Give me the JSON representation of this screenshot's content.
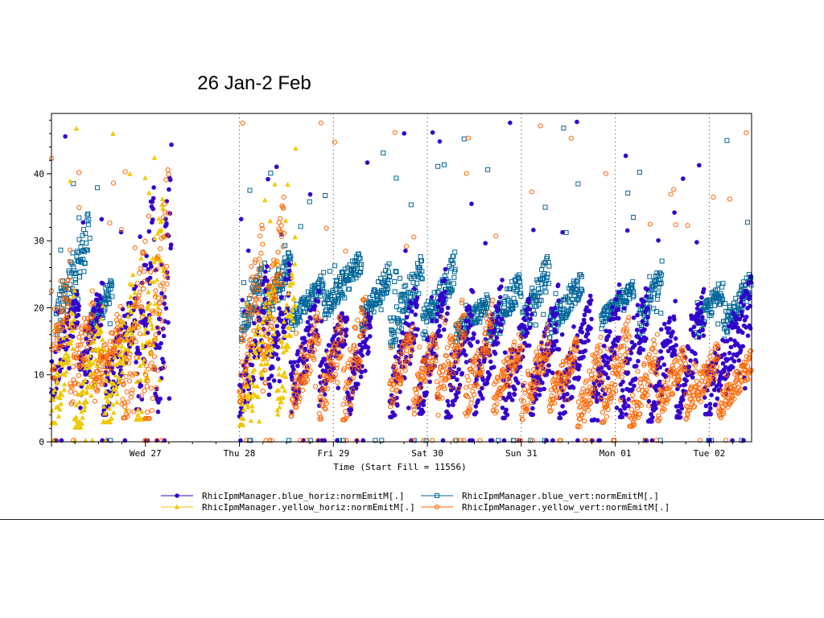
{
  "slide": {
    "title": "26 Jan-2 Feb"
  },
  "chart_data": {
    "type": "scatter",
    "title": "",
    "xlabel": "Time (Start Fill = 11556)",
    "ylabel": "",
    "x_ticks": [
      "Wed 27",
      "Thu 28",
      "Fri 29",
      "Sat 30",
      "Sun 31",
      "Mon 01",
      "Tue 02"
    ],
    "x_tick_positions_days": [
      1,
      2,
      3,
      4,
      5,
      6,
      7
    ],
    "xlim_days": [
      0,
      7.45
    ],
    "ylim": [
      0,
      49
    ],
    "y_ticks": [
      0,
      10,
      20,
      30,
      40
    ],
    "grid": "dotted vertical lines at day boundaries",
    "legend_position": "bottom",
    "gaps_days": [
      [
        1.45,
        1.98
      ]
    ],
    "series": [
      {
        "name": "RhicIpmManager.blue_horiz:normEmitM[.]",
        "marker": "filled-circle",
        "color": "#3300cc",
        "pattern": [
          {
            "t0": 0.0,
            "t1": 0.3,
            "y0": 9,
            "y1": 21
          },
          {
            "t0": 0.3,
            "t1": 0.55,
            "y0": 8,
            "y1": 22
          },
          {
            "t0": 0.55,
            "t1": 0.9,
            "y0": 6,
            "y1": 20
          },
          {
            "t0": 0.9,
            "t1": 1.1,
            "y0": 5,
            "y1": 36
          },
          {
            "t0": 1.1,
            "t1": 1.28,
            "y0": 4,
            "y1": 37
          },
          {
            "t0": 2.0,
            "t1": 2.3,
            "y0": 5,
            "y1": 22
          },
          {
            "t0": 2.3,
            "t1": 2.55,
            "y0": 9,
            "y1": 24
          },
          {
            "t0": 2.55,
            "t1": 2.85,
            "y0": 7,
            "y1": 20
          },
          {
            "t0": 2.85,
            "t1": 3.15,
            "y0": 8,
            "y1": 19
          },
          {
            "t0": 3.15,
            "t1": 3.4,
            "y0": 6,
            "y1": 18
          },
          {
            "t0": 3.6,
            "t1": 3.9,
            "y0": 5,
            "y1": 21
          },
          {
            "t0": 3.9,
            "t1": 4.2,
            "y0": 6,
            "y1": 22
          },
          {
            "t0": 4.2,
            "t1": 4.5,
            "y0": 5,
            "y1": 20
          },
          {
            "t0": 4.5,
            "t1": 4.8,
            "y0": 6,
            "y1": 21
          },
          {
            "t0": 4.8,
            "t1": 5.1,
            "y0": 5,
            "y1": 19
          },
          {
            "t0": 5.1,
            "t1": 5.4,
            "y0": 6,
            "y1": 20
          },
          {
            "t0": 5.4,
            "t1": 5.75,
            "y0": 5,
            "y1": 19
          },
          {
            "t0": 5.75,
            "t1": 6.05,
            "y0": 4,
            "y1": 20
          },
          {
            "t0": 6.05,
            "t1": 6.35,
            "y0": 5,
            "y1": 21
          },
          {
            "t0": 6.35,
            "t1": 6.65,
            "y0": 4,
            "y1": 18
          },
          {
            "t0": 6.65,
            "t1": 6.95,
            "y0": 5,
            "y1": 20
          },
          {
            "t0": 6.95,
            "t1": 7.45,
            "y0": 6,
            "y1": 21
          }
        ]
      },
      {
        "name": "RhicIpmManager.blue_vert:normEmitM[.]",
        "marker": "open-square",
        "color": "#006699",
        "pattern": [
          {
            "t0": 0.05,
            "t1": 0.4,
            "y0": 18,
            "y1": 31
          },
          {
            "t0": 0.4,
            "t1": 0.65,
            "y0": 17,
            "y1": 23
          },
          {
            "t0": 2.02,
            "t1": 2.25,
            "y0": 17,
            "y1": 25
          },
          {
            "t0": 2.25,
            "t1": 2.55,
            "y0": 19,
            "y1": 27
          },
          {
            "t0": 2.55,
            "t1": 2.9,
            "y0": 18,
            "y1": 24
          },
          {
            "t0": 2.9,
            "t1": 3.3,
            "y0": 20,
            "y1": 27
          },
          {
            "t0": 3.3,
            "t1": 3.6,
            "y0": 18,
            "y1": 25
          },
          {
            "t0": 3.6,
            "t1": 3.95,
            "y0": 16,
            "y1": 26
          },
          {
            "t0": 3.95,
            "t1": 4.3,
            "y0": 17,
            "y1": 26
          },
          {
            "t0": 4.3,
            "t1": 4.65,
            "y0": 16,
            "y1": 21
          },
          {
            "t0": 4.65,
            "t1": 5.0,
            "y0": 16,
            "y1": 24
          },
          {
            "t0": 5.0,
            "t1": 5.3,
            "y0": 17,
            "y1": 26
          },
          {
            "t0": 5.3,
            "t1": 5.65,
            "y0": 17,
            "y1": 24
          },
          {
            "t0": 5.85,
            "t1": 6.2,
            "y0": 18,
            "y1": 23
          },
          {
            "t0": 6.25,
            "t1": 6.5,
            "y0": 17,
            "y1": 25
          },
          {
            "t0": 6.85,
            "t1": 7.15,
            "y0": 17,
            "y1": 23
          },
          {
            "t0": 7.15,
            "t1": 7.45,
            "y0": 17,
            "y1": 24
          }
        ]
      },
      {
        "name": "RhicIpmManager.yellow_horiz:normEmitM[.]",
        "marker": "filled-triangle",
        "color": "#f0c800",
        "pattern": [
          {
            "t0": 0.0,
            "t1": 0.25,
            "y0": 3,
            "y1": 20
          },
          {
            "t0": 0.25,
            "t1": 0.55,
            "y0": 2,
            "y1": 17
          },
          {
            "t0": 0.55,
            "t1": 0.9,
            "y0": 3,
            "y1": 22
          },
          {
            "t0": 0.9,
            "t1": 1.2,
            "y0": 2,
            "y1": 33
          },
          {
            "t0": 2.0,
            "t1": 2.4,
            "y0": 2,
            "y1": 22
          },
          {
            "t0": 2.4,
            "t1": 2.6,
            "y0": 5,
            "y1": 26
          }
        ]
      },
      {
        "name": "RhicIpmManager.yellow_vert:normEmitM[.]",
        "marker": "open-circle",
        "color": "#ff6600",
        "pattern": [
          {
            "t0": 0.0,
            "t1": 0.2,
            "y0": 11,
            "y1": 24
          },
          {
            "t0": 0.2,
            "t1": 0.45,
            "y0": 8,
            "y1": 20
          },
          {
            "t0": 0.45,
            "t1": 0.75,
            "y0": 8,
            "y1": 18
          },
          {
            "t0": 0.75,
            "t1": 1.0,
            "y0": 4,
            "y1": 25
          },
          {
            "t0": 1.0,
            "t1": 1.25,
            "y0": 2,
            "y1": 35
          },
          {
            "t0": 2.0,
            "t1": 2.25,
            "y0": 9,
            "y1": 28
          },
          {
            "t0": 2.25,
            "t1": 2.48,
            "y0": 12,
            "y1": 33
          },
          {
            "t0": 2.55,
            "t1": 2.85,
            "y0": 6,
            "y1": 17
          },
          {
            "t0": 2.85,
            "t1": 3.1,
            "y0": 5,
            "y1": 17
          },
          {
            "t0": 3.1,
            "t1": 3.35,
            "y0": 4,
            "y1": 21
          },
          {
            "t0": 3.6,
            "t1": 3.85,
            "y0": 7,
            "y1": 16
          },
          {
            "t0": 3.85,
            "t1": 4.1,
            "y0": 6,
            "y1": 15
          },
          {
            "t0": 4.1,
            "t1": 4.4,
            "y0": 6,
            "y1": 19
          },
          {
            "t0": 4.4,
            "t1": 4.7,
            "y0": 6,
            "y1": 18
          },
          {
            "t0": 4.7,
            "t1": 5.0,
            "y0": 6,
            "y1": 15
          },
          {
            "t0": 5.0,
            "t1": 5.3,
            "y0": 5,
            "y1": 16
          },
          {
            "t0": 5.3,
            "t1": 5.6,
            "y0": 6,
            "y1": 14
          },
          {
            "t0": 5.6,
            "t1": 5.85,
            "y0": 3,
            "y1": 13
          },
          {
            "t0": 5.85,
            "t1": 6.15,
            "y0": 4,
            "y1": 16
          },
          {
            "t0": 6.15,
            "t1": 6.45,
            "y0": 3,
            "y1": 14
          },
          {
            "t0": 6.45,
            "t1": 6.75,
            "y0": 5,
            "y1": 13
          },
          {
            "t0": 6.75,
            "t1": 7.1,
            "y0": 5,
            "y1": 13
          },
          {
            "t0": 7.1,
            "t1": 7.45,
            "y0": 5,
            "y1": 12
          }
        ]
      }
    ]
  }
}
